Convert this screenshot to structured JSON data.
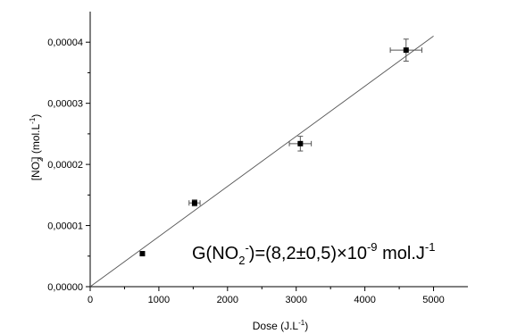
{
  "chart_data": {
    "type": "scatter",
    "title": "",
    "xlabel": {
      "base": "Dose (J.L",
      "sup": "-1",
      "end": ")"
    },
    "ylabel": {
      "open": "[NO",
      "sub": "2",
      "sup": "-",
      "end": "] (mol.L",
      "sup2": "-1",
      "end2": ")"
    },
    "xlim": [
      0,
      5500
    ],
    "ylim": [
      0,
      4.5e-05
    ],
    "x_ticks": [
      0,
      1000,
      2000,
      3000,
      4000,
      5000
    ],
    "x_tick_labels": [
      "0",
      "1000",
      "2000",
      "3000",
      "4000",
      "5000"
    ],
    "y_ticks": [
      0,
      1e-05,
      2e-05,
      3e-05,
      4e-05
    ],
    "y_tick_labels": [
      "0,00000",
      "0,00001",
      "0,00002",
      "0,00003",
      "0,00004"
    ],
    "grid": false,
    "series": [
      {
        "points": [
          {
            "x": 760,
            "y": 5.4e-06,
            "xerr": 0,
            "yerr": 0
          },
          {
            "x": 1520,
            "y": 1.37e-05,
            "xerr": 80,
            "yerr": 5e-07
          },
          {
            "x": 3060,
            "y": 2.34e-05,
            "xerr": 160,
            "yerr": 1.2e-06
          },
          {
            "x": 4600,
            "y": 3.87e-05,
            "xerr": 230,
            "yerr": 1.8e-06
          }
        ]
      }
    ],
    "fit_line": {
      "slope": 8.2e-09,
      "intercept": 0,
      "x_range": [
        0,
        5000
      ]
    },
    "annotation": {
      "g": "G(NO",
      "sub": "2",
      "sup": "-",
      "mid": ")=(8,2±0,5)×10",
      "exp": "-9",
      "unit": " mol.J",
      "exp2": "-1"
    }
  }
}
